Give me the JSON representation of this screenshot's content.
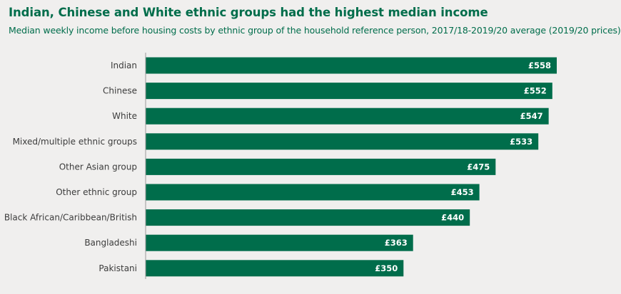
{
  "colors": {
    "background": "#f0efee",
    "bar": "#006d4b",
    "title": "#006d4b",
    "axis": "#9a9a9a"
  },
  "chart_data": {
    "type": "bar",
    "orientation": "horizontal",
    "title": "Indian, Chinese and White ethnic groups had the highest median income",
    "subtitle": "Median weekly income before housing costs by ethnic group of the household reference person, 2017/18-2019/20 average (2019/20 prices)",
    "categories": [
      "Indian",
      "Chinese",
      "White",
      "Mixed/multiple ethnic groups",
      "Other Asian group",
      "Other ethnic group",
      "Black African/Caribbean/British",
      "Bangladeshi",
      "Pakistani"
    ],
    "values": [
      558,
      552,
      547,
      533,
      475,
      453,
      440,
      363,
      350
    ],
    "value_labels": [
      "£558",
      "£552",
      "£547",
      "£533",
      "£475",
      "£453",
      "£440",
      "£363",
      "£350"
    ],
    "xlim": [
      0,
      575
    ],
    "grid": false,
    "legend": "none"
  }
}
